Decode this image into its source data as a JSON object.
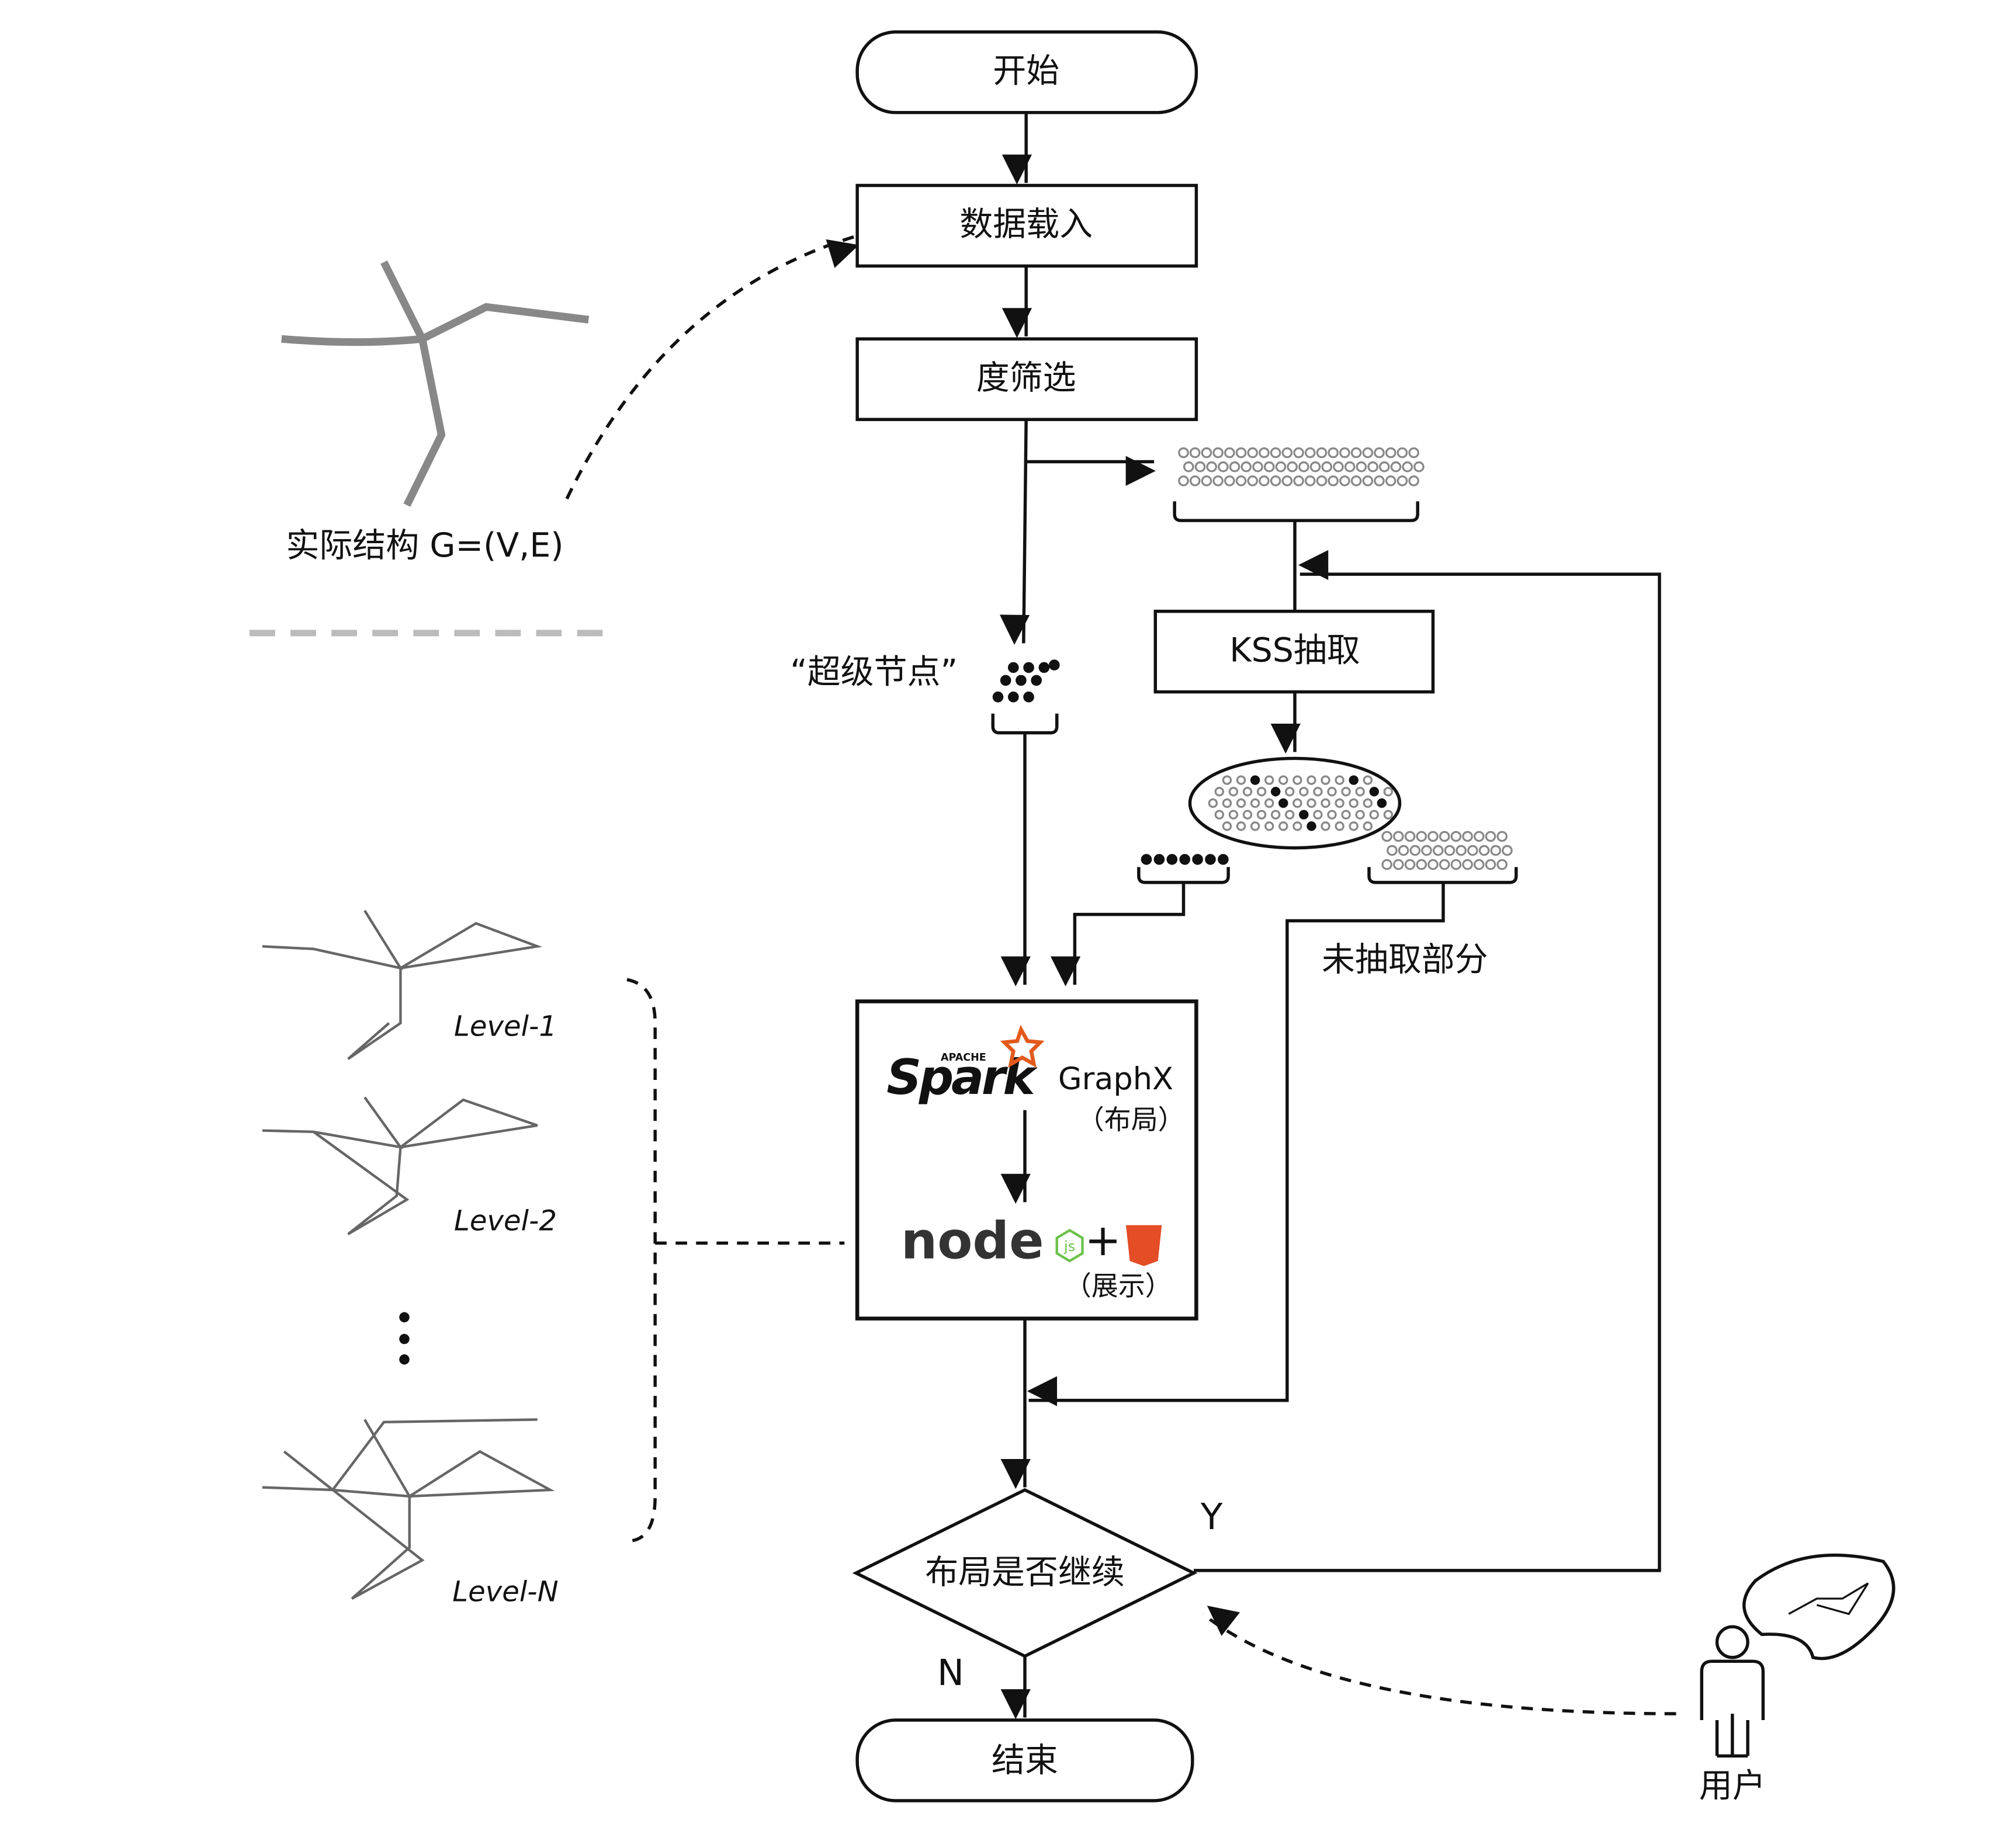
{
  "nodes": {
    "start": "开始",
    "load": "数据载入",
    "filter": "度筛选",
    "kss": "KSS抽取",
    "decision": "布局是否继续",
    "end": "结束"
  },
  "labels": {
    "actual": "实际结构 G=(V,E)",
    "super": "“超级节点”",
    "rest": "未抽取部分",
    "yes": "Y",
    "no": "N",
    "user": "用户"
  },
  "layout_box": {
    "apache": "APACHE",
    "spark": "Spark",
    "graphx": "GraphX",
    "layout": "（布局）",
    "node": "node",
    "js": "js",
    "display": "（展示）"
  },
  "levels": [
    "Level-1",
    "Level-2",
    "Level-N"
  ]
}
